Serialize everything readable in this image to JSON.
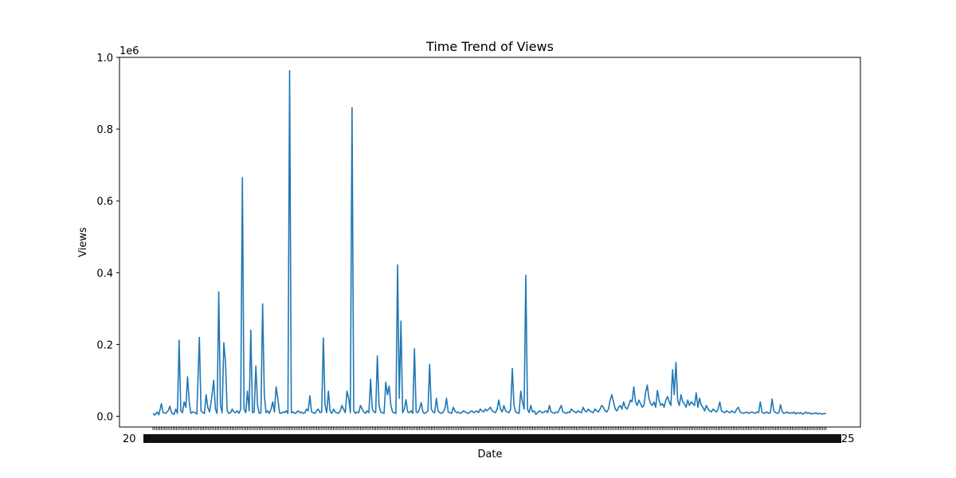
{
  "chart_data": {
    "type": "line",
    "title": "Time Trend of Views",
    "xlabel": "Date",
    "ylabel": "Views",
    "y_offset_text": "1e6",
    "y_scale": 1000000,
    "ylim": [
      -30000,
      1000000
    ],
    "yticks": [
      0.0,
      0.2,
      0.4,
      0.6,
      0.8,
      1.0
    ],
    "ytick_labels": [
      "0.0",
      "0.2",
      "0.4",
      "0.6",
      "0.8",
      "1.0"
    ],
    "x_ticks_overlapping": true,
    "x_tick_count": 800,
    "grid": false,
    "series_color": "#1f77b4",
    "series": [
      {
        "x_index": [
          0,
          2,
          5,
          7,
          10,
          12,
          15,
          18,
          20,
          22,
          25,
          27,
          29,
          31,
          33,
          35,
          37,
          39,
          41,
          43,
          45,
          47,
          50,
          52,
          55,
          57,
          59,
          61,
          63,
          65,
          67,
          69,
          72,
          74,
          76,
          78,
          80,
          82,
          84,
          86,
          88,
          90,
          92,
          94,
          96,
          98,
          100,
          102,
          104,
          106,
          108,
          110,
          112,
          114,
          116,
          118,
          120,
          122,
          124,
          126,
          128,
          130,
          132,
          134,
          136,
          138,
          140,
          142,
          144,
          146,
          148,
          150,
          152,
          154,
          156,
          158,
          160,
          162,
          164,
          166,
          168,
          170,
          172,
          174,
          176,
          178,
          180,
          182,
          184,
          186,
          188,
          190,
          192,
          194,
          196,
          198,
          200,
          202,
          204,
          206,
          208,
          210,
          212,
          214,
          216,
          218,
          220,
          222,
          224,
          226,
          228,
          230,
          232,
          234,
          236,
          238,
          240,
          242,
          244,
          246,
          248,
          250,
          252,
          254,
          256,
          258,
          260,
          262,
          264,
          266,
          268,
          270,
          272,
          274,
          276,
          278,
          280,
          282,
          284,
          286,
          288,
          290,
          292,
          294,
          296,
          298,
          300,
          302,
          304,
          306,
          308,
          310,
          312,
          314,
          316,
          318,
          320,
          322,
          324,
          326,
          328,
          330,
          332,
          334,
          336,
          338,
          340,
          342,
          344,
          346,
          348,
          350,
          352,
          354,
          356,
          358,
          360,
          362,
          364,
          366,
          368,
          370,
          372,
          374,
          376,
          378,
          380,
          382,
          384,
          386,
          388,
          390,
          392,
          394,
          396,
          398,
          400,
          402,
          404,
          406,
          408,
          410,
          412,
          414,
          416,
          418,
          420,
          422,
          424,
          426,
          428,
          430,
          432,
          434,
          436,
          438,
          440,
          442,
          444,
          446,
          448,
          450,
          452,
          454,
          456,
          458,
          460,
          462,
          464,
          466,
          468,
          470,
          472,
          474,
          476,
          478,
          480,
          482,
          484,
          486,
          488,
          490,
          492,
          494,
          496,
          498,
          500,
          502,
          504,
          506,
          508,
          510,
          512,
          514,
          516,
          518,
          520,
          522,
          524,
          526,
          528,
          530,
          532,
          534,
          536,
          538,
          540,
          542,
          544,
          546,
          548,
          550,
          552,
          554,
          556,
          558,
          560,
          562,
          564,
          566,
          568,
          570,
          572,
          574,
          576,
          578,
          580,
          582,
          584,
          586,
          588,
          590,
          592,
          594,
          596,
          598,
          600,
          602,
          604,
          606,
          608,
          610,
          612,
          614,
          616,
          618,
          620,
          622,
          624,
          626,
          628,
          630,
          632,
          634,
          636,
          638,
          640,
          642,
          644,
          646,
          648,
          650,
          652,
          654,
          656,
          658,
          660,
          662,
          664,
          666,
          668,
          670,
          672,
          674,
          676,
          678,
          680,
          682,
          684,
          686,
          688,
          690,
          692,
          694,
          696,
          698,
          700,
          702,
          704,
          706,
          708,
          710,
          712,
          714,
          716,
          718,
          720,
          722,
          724,
          726,
          728,
          730,
          732,
          734,
          736,
          738,
          740,
          742,
          744,
          746,
          748,
          750,
          752,
          754,
          756,
          758,
          760,
          762,
          764,
          766,
          768,
          770,
          772,
          774,
          776,
          778,
          780,
          782,
          784,
          786,
          788,
          790,
          792,
          794,
          796,
          798
        ],
        "views": [
          8000,
          3000,
          12000,
          4000,
          35000,
          10000,
          8000,
          15000,
          28000,
          10000,
          5000,
          20000,
          8000,
          212000,
          15000,
          10000,
          40000,
          25000,
          110000,
          40000,
          8000,
          12000,
          10000,
          6000,
          220000,
          15000,
          10000,
          8000,
          60000,
          25000,
          12000,
          40000,
          100000,
          20000,
          8000,
          347000,
          30000,
          10000,
          205000,
          150000,
          15000,
          8000,
          10000,
          20000,
          12000,
          10000,
          15000,
          8000,
          20000,
          665000,
          20000,
          10000,
          70000,
          15000,
          240000,
          10000,
          12000,
          140000,
          30000,
          8000,
          10000,
          313000,
          60000,
          10000,
          15000,
          8000,
          20000,
          40000,
          12000,
          82000,
          50000,
          10000,
          8000,
          12000,
          10000,
          15000,
          8000,
          963000,
          10000,
          12000,
          8000,
          10000,
          15000,
          10000,
          12000,
          8000,
          10000,
          20000,
          15000,
          57000,
          12000,
          10000,
          8000,
          15000,
          20000,
          10000,
          12000,
          218000,
          30000,
          10000,
          70000,
          15000,
          8000,
          20000,
          12000,
          10000,
          8000,
          15000,
          30000,
          20000,
          10000,
          70000,
          50000,
          10000,
          860000,
          15000,
          8000,
          12000,
          10000,
          30000,
          20000,
          12000,
          8000,
          15000,
          10000,
          103000,
          20000,
          12000,
          10000,
          168000,
          30000,
          12000,
          10000,
          8000,
          95000,
          60000,
          84000,
          30000,
          12000,
          10000,
          8000,
          422000,
          50000,
          265000,
          10000,
          20000,
          46000,
          12000,
          10000,
          15000,
          8000,
          188000,
          12000,
          10000,
          20000,
          38000,
          12000,
          8000,
          10000,
          15000,
          145000,
          20000,
          12000,
          10000,
          50000,
          15000,
          10000,
          8000,
          12000,
          20000,
          50000,
          12000,
          10000,
          8000,
          25000,
          15000,
          10000,
          12000,
          8000,
          10000,
          15000,
          12000,
          10000,
          8000,
          12000,
          15000,
          10000,
          12000,
          15000,
          10000,
          20000,
          15000,
          12000,
          20000,
          15000,
          20000,
          25000,
          15000,
          12000,
          10000,
          20000,
          45000,
          20000,
          12000,
          30000,
          15000,
          12000,
          10000,
          20000,
          133000,
          30000,
          12000,
          10000,
          8000,
          70000,
          40000,
          20000,
          393000,
          20000,
          10000,
          30000,
          12000,
          15000,
          5000,
          10000,
          15000,
          12000,
          10000,
          12000,
          15000,
          10000,
          30000,
          12000,
          10000,
          8000,
          12000,
          10000,
          20000,
          30000,
          12000,
          10000,
          8000,
          12000,
          10000,
          20000,
          15000,
          12000,
          10000,
          15000,
          12000,
          10000,
          25000,
          15000,
          12000,
          20000,
          15000,
          12000,
          10000,
          20000,
          15000,
          12000,
          20000,
          30000,
          25000,
          15000,
          12000,
          20000,
          45000,
          60000,
          40000,
          20000,
          15000,
          25000,
          30000,
          20000,
          40000,
          25000,
          20000,
          30000,
          45000,
          40000,
          82000,
          40000,
          30000,
          45000,
          35000,
          25000,
          30000,
          65000,
          87000,
          50000,
          35000,
          30000,
          40000,
          25000,
          72000,
          45000,
          30000,
          35000,
          25000,
          45000,
          55000,
          40000,
          30000,
          130000,
          60000,
          150000,
          45000,
          30000,
          60000,
          40000,
          35000,
          25000,
          45000,
          30000,
          40000,
          35000,
          30000,
          65000,
          25000,
          50000,
          30000,
          25000,
          15000,
          30000,
          20000,
          15000,
          12000,
          20000,
          15000,
          12000,
          20000,
          40000,
          15000,
          12000,
          10000,
          15000,
          12000,
          10000,
          15000,
          12000,
          10000,
          20000,
          25000,
          12000,
          10000,
          8000,
          10000,
          12000,
          8000,
          10000,
          12000,
          10000,
          8000,
          12000,
          10000,
          40000,
          12000,
          8000,
          10000,
          12000,
          8000,
          10000,
          48000,
          15000,
          10000,
          8000,
          10000,
          32000,
          12000,
          8000,
          10000,
          12000,
          8000,
          10000,
          8000,
          12000,
          6000,
          10000,
          8000,
          10000,
          6000,
          8000,
          12000,
          8000,
          10000,
          6000,
          8000,
          7000,
          10000,
          6000,
          8000,
          7000,
          6000,
          8000,
          7000,
          6000,
          8000,
          7000,
          6000,
          8000,
          7000,
          6000,
          8000,
          7000,
          6000,
          8000,
          7000,
          6000,
          8000,
          7000,
          6000,
          8000
        ]
      }
    ]
  }
}
